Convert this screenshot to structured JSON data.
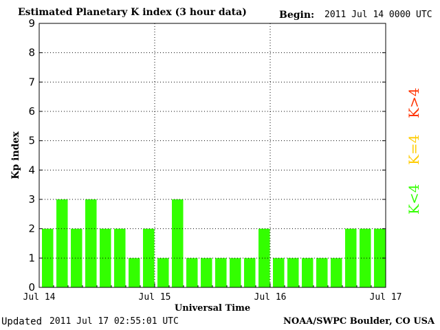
{
  "header": {
    "title": "Estimated Planetary K index (3 hour data)",
    "begin_label": "Begin:",
    "begin_value": "2011 Jul 14 0000 UTC"
  },
  "footer": {
    "updated_label": "Updated",
    "updated_value": "2011 Jul 17 02:55:01 UTC",
    "source": "NOAA/SWPC Boulder, CO USA"
  },
  "legend": {
    "above": {
      "label": "K>4",
      "color": "#ff3300"
    },
    "equal": {
      "label": "K=4",
      "color": "#ffcc00"
    },
    "below": {
      "label": "K<4",
      "color": "#33ff00"
    }
  },
  "chart_data": {
    "type": "bar",
    "title": "Estimated Planetary K index (3 hour data)",
    "xlabel": "Universal Time",
    "ylabel": "Kp index",
    "ylim": [
      0,
      9
    ],
    "yticks": [
      0,
      1,
      2,
      3,
      4,
      5,
      6,
      7,
      8,
      9
    ],
    "x_tick_labels": [
      "Jul 14",
      "Jul 15",
      "Jul 16",
      "Jul 17"
    ],
    "grid": true,
    "bar_color": "#33ff00",
    "values": [
      2,
      3,
      2,
      3,
      2,
      2,
      1,
      2,
      1,
      3,
      1,
      1,
      1,
      1,
      1,
      2,
      1,
      1,
      1,
      1,
      1,
      2,
      2,
      2
    ]
  }
}
